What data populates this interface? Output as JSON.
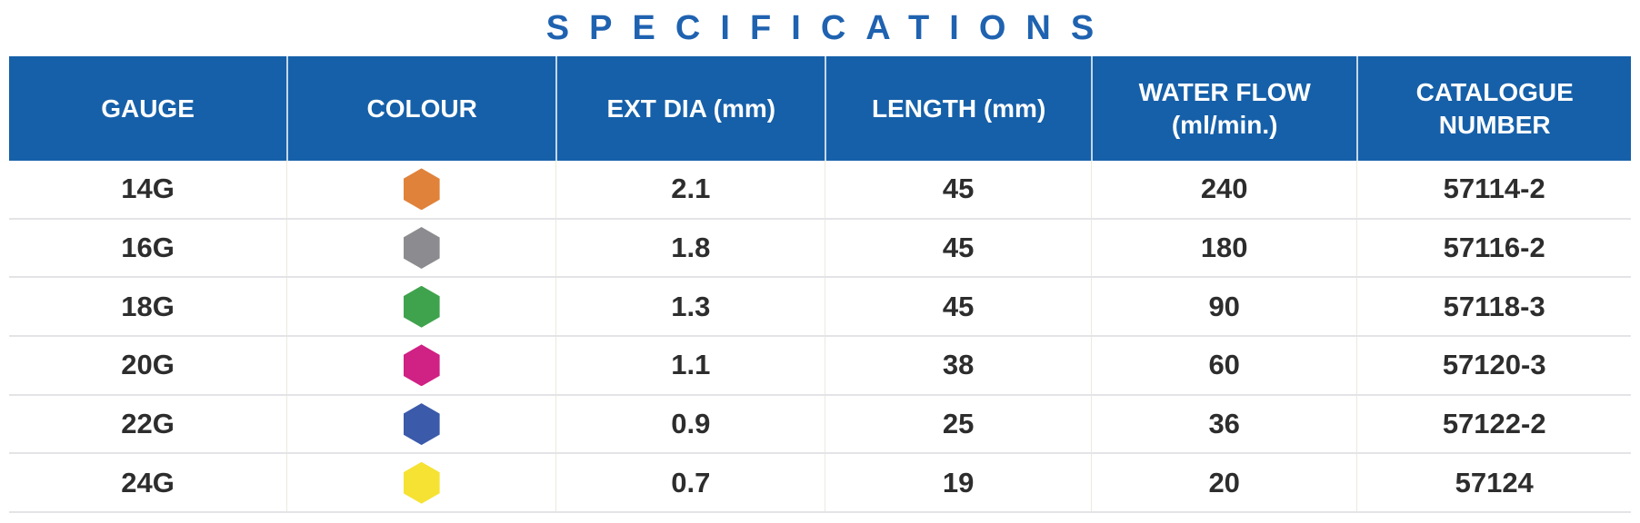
{
  "title": "SPECIFICATIONS",
  "colors": {
    "header_bg": "#1660a9",
    "title": "#1f62b0",
    "row_text": "#2d2d2d",
    "divider": "#e4e4e7"
  },
  "table": {
    "columns": [
      {
        "key": "gauge",
        "label": "GAUGE",
        "lines": [
          "GAUGE"
        ]
      },
      {
        "key": "colour",
        "label": "COLOUR",
        "lines": [
          "COLOUR"
        ]
      },
      {
        "key": "ext_dia",
        "label": "EXT DIA (mm)",
        "lines": [
          "EXT DIA (mm)"
        ]
      },
      {
        "key": "length",
        "label": "LENGTH (mm)",
        "lines": [
          "LENGTH (mm)"
        ]
      },
      {
        "key": "water_flow",
        "label": "WATER FLOW (ml/min.)",
        "lines": [
          "WATER FLOW",
          "(ml/min.)"
        ]
      },
      {
        "key": "catalogue",
        "label": "CATALOGUE NUMBER",
        "lines": [
          "CATALOGUE",
          "NUMBER"
        ]
      }
    ],
    "rows": [
      {
        "gauge": "14G",
        "colour_name": "orange",
        "colour_hex": "#e0823a",
        "ext_dia": "2.1",
        "length": "45",
        "water_flow": "240",
        "catalogue": "57114-2"
      },
      {
        "gauge": "16G",
        "colour_name": "grey",
        "colour_hex": "#8c8c90",
        "ext_dia": "1.8",
        "length": "45",
        "water_flow": "180",
        "catalogue": "57116-2"
      },
      {
        "gauge": "18G",
        "colour_name": "green",
        "colour_hex": "#3fa34d",
        "ext_dia": "1.3",
        "length": "45",
        "water_flow": "90",
        "catalogue": "57118-3"
      },
      {
        "gauge": "20G",
        "colour_name": "pink",
        "colour_hex": "#d02184",
        "ext_dia": "1.1",
        "length": "38",
        "water_flow": "60",
        "catalogue": "57120-3"
      },
      {
        "gauge": "22G",
        "colour_name": "blue",
        "colour_hex": "#3b5aaa",
        "ext_dia": "0.9",
        "length": "25",
        "water_flow": "36",
        "catalogue": "57122-2"
      },
      {
        "gauge": "24G",
        "colour_name": "yellow",
        "colour_hex": "#f5e233",
        "ext_dia": "0.7",
        "length": "19",
        "water_flow": "20",
        "catalogue": "57124"
      }
    ]
  }
}
